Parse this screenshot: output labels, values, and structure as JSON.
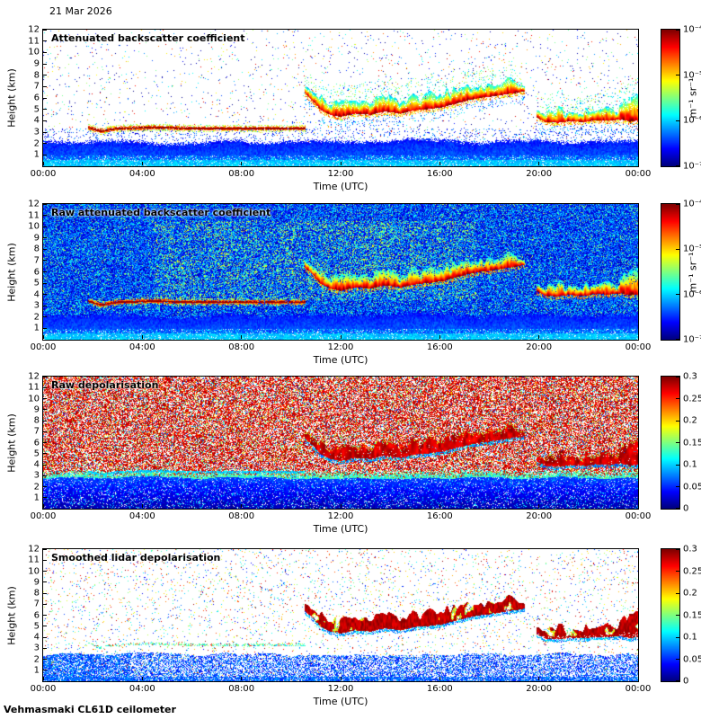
{
  "page": {
    "date_label": "21 Mar 2026",
    "footer": "Vehmasmaki CL61D ceilometer"
  },
  "chart_data": {
    "type": "heatmap",
    "colormap": "jet",
    "x_label": "Time (UTC)",
    "y_label": "Height (km)",
    "x_ticks": [
      "00:00",
      "04:00",
      "08:00",
      "12:00",
      "16:00",
      "20:00",
      "00:00"
    ],
    "x_range_hours": [
      0,
      24
    ],
    "y_ticks": [
      "1",
      "2",
      "3",
      "4",
      "5",
      "6",
      "7",
      "8",
      "9",
      "10",
      "11",
      "12"
    ],
    "y_range_km": [
      0,
      12
    ],
    "panels": [
      {
        "title": "Attenuated backscatter coefficient",
        "style": "bs_clean",
        "colorbar": {
          "scale": "log10",
          "min": "1e-7",
          "max": "1e-4",
          "ticks": [
            "10⁻⁷",
            "10⁻⁶",
            "10⁻⁵",
            "10⁻⁴"
          ],
          "unit": "m⁻¹ sr⁻¹"
        }
      },
      {
        "title": "Raw attenuated backscatter coefficient",
        "style": "bs_raw",
        "colorbar": {
          "scale": "log10",
          "min": "1e-7",
          "max": "1e-4",
          "ticks": [
            "10⁻⁷",
            "10⁻⁶",
            "10⁻⁵",
            "10⁻⁴"
          ],
          "unit": "m⁻¹ sr⁻¹"
        }
      },
      {
        "title": "Raw depolarisation",
        "style": "depol_raw",
        "colorbar": {
          "scale": "linear",
          "min": 0,
          "max": 0.3,
          "ticks": [
            "0",
            "0.05",
            "0.1",
            "0.15",
            "0.2",
            "0.25",
            "0.3"
          ],
          "unit": ""
        }
      },
      {
        "title": "Smoothed lidar depolarisation",
        "style": "depol_smooth",
        "colorbar": {
          "scale": "linear",
          "min": 0,
          "max": 0.3,
          "ticks": [
            "0",
            "0.05",
            "0.1",
            "0.15",
            "0.2",
            "0.25",
            "0.3"
          ],
          "unit": ""
        }
      }
    ],
    "features": {
      "boundary_layer": {
        "top_km_min": 2.0,
        "top_km_max": 2.6
      },
      "liquid_cloud_line": {
        "hours": [
          1.8,
          10.6
        ],
        "height_km_points": [
          [
            1.8,
            3.4
          ],
          [
            2.3,
            3.05
          ],
          [
            3.0,
            3.3
          ],
          [
            4.5,
            3.4
          ],
          [
            6.0,
            3.3
          ],
          [
            8.0,
            3.3
          ],
          [
            10.6,
            3.3
          ]
        ]
      },
      "midday_cloud": {
        "hours": [
          10.55,
          19.45
        ],
        "base_km_points": [
          [
            10.55,
            6.4
          ],
          [
            10.9,
            5.7
          ],
          [
            11.2,
            4.9
          ],
          [
            11.6,
            4.5
          ],
          [
            12.0,
            4.3
          ],
          [
            12.6,
            4.6
          ],
          [
            13.2,
            4.5
          ],
          [
            13.8,
            4.8
          ],
          [
            14.4,
            4.6
          ],
          [
            15.0,
            4.9
          ],
          [
            15.6,
            5.0
          ],
          [
            16.2,
            5.2
          ],
          [
            16.8,
            5.6
          ],
          [
            17.4,
            5.9
          ],
          [
            18.0,
            6.1
          ],
          [
            18.6,
            6.3
          ],
          [
            19.45,
            6.6
          ]
        ],
        "top_km_points": [
          [
            10.55,
            7.3
          ],
          [
            11.0,
            6.6
          ],
          [
            11.5,
            6.1
          ],
          [
            12.0,
            5.9
          ],
          [
            12.6,
            6.3
          ],
          [
            13.2,
            6.0
          ],
          [
            13.8,
            6.4
          ],
          [
            14.4,
            6.1
          ],
          [
            15.0,
            6.4
          ],
          [
            15.6,
            6.6
          ],
          [
            16.2,
            6.9
          ],
          [
            16.8,
            7.1
          ],
          [
            17.4,
            7.4
          ],
          [
            18.0,
            7.6
          ],
          [
            18.6,
            7.9
          ],
          [
            19.1,
            7.8
          ],
          [
            19.45,
            7.2
          ]
        ]
      },
      "evening_cloud": {
        "hours": [
          19.9,
          24.0
        ],
        "base_km_points": [
          [
            19.9,
            4.3
          ],
          [
            20.3,
            3.85
          ],
          [
            20.8,
            3.8
          ],
          [
            21.3,
            3.95
          ],
          [
            21.8,
            3.85
          ],
          [
            22.3,
            4.05
          ],
          [
            22.8,
            3.95
          ],
          [
            23.3,
            4.1
          ],
          [
            23.7,
            3.9
          ],
          [
            24.0,
            4.0
          ]
        ],
        "top_km_points": [
          [
            19.9,
            5.1
          ],
          [
            20.3,
            4.9
          ],
          [
            20.8,
            5.4
          ],
          [
            21.3,
            4.8
          ],
          [
            21.8,
            5.2
          ],
          [
            22.3,
            5.0
          ],
          [
            22.8,
            5.8
          ],
          [
            23.2,
            5.1
          ],
          [
            23.5,
            6.6
          ],
          [
            23.8,
            6.2
          ],
          [
            24.0,
            6.6
          ]
        ]
      }
    }
  }
}
